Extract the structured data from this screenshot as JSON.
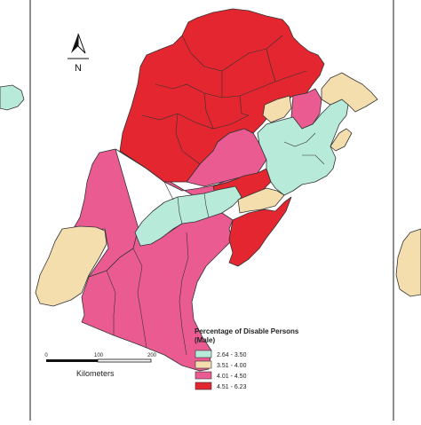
{
  "colors": {
    "class1": "#b7ead9",
    "class2": "#f5deae",
    "class3": "#ea5b92",
    "class4": "#e3262f",
    "border": "#333333"
  },
  "north_arrow": {
    "label": "N"
  },
  "legend": {
    "title_line1": "Percentage of Disable Persons",
    "title_line2": "(Male)",
    "items": [
      {
        "label": "2.64 - 3.50",
        "color": "#b7ead9"
      },
      {
        "label": "3.51 - 4.00",
        "color": "#f5deae"
      },
      {
        "label": "4.01 - 4.50",
        "color": "#ea5b92"
      },
      {
        "label": "4.51 - 6.23",
        "color": "#e3262f"
      }
    ]
  },
  "scale_bar": {
    "ticks": [
      "0",
      "100",
      "200"
    ],
    "unit": "Kilometers"
  },
  "regions": [
    {
      "class": "class4",
      "name": "north-red"
    },
    {
      "class": "class4",
      "name": "red-center-band"
    },
    {
      "class": "class4",
      "name": "red-south-east"
    },
    {
      "class": "class3",
      "name": "pink-north-east"
    },
    {
      "class": "class3",
      "name": "pink-center"
    },
    {
      "class": "class3",
      "name": "pink-south"
    },
    {
      "class": "class1",
      "name": "teal-east"
    },
    {
      "class": "class1",
      "name": "teal-central-band"
    },
    {
      "class": "class2",
      "name": "beige-west"
    },
    {
      "class": "class2",
      "name": "beige-north-east"
    },
    {
      "class": "class2",
      "name": "beige-east-small"
    },
    {
      "class": "class2",
      "name": "beige-center-east"
    }
  ]
}
